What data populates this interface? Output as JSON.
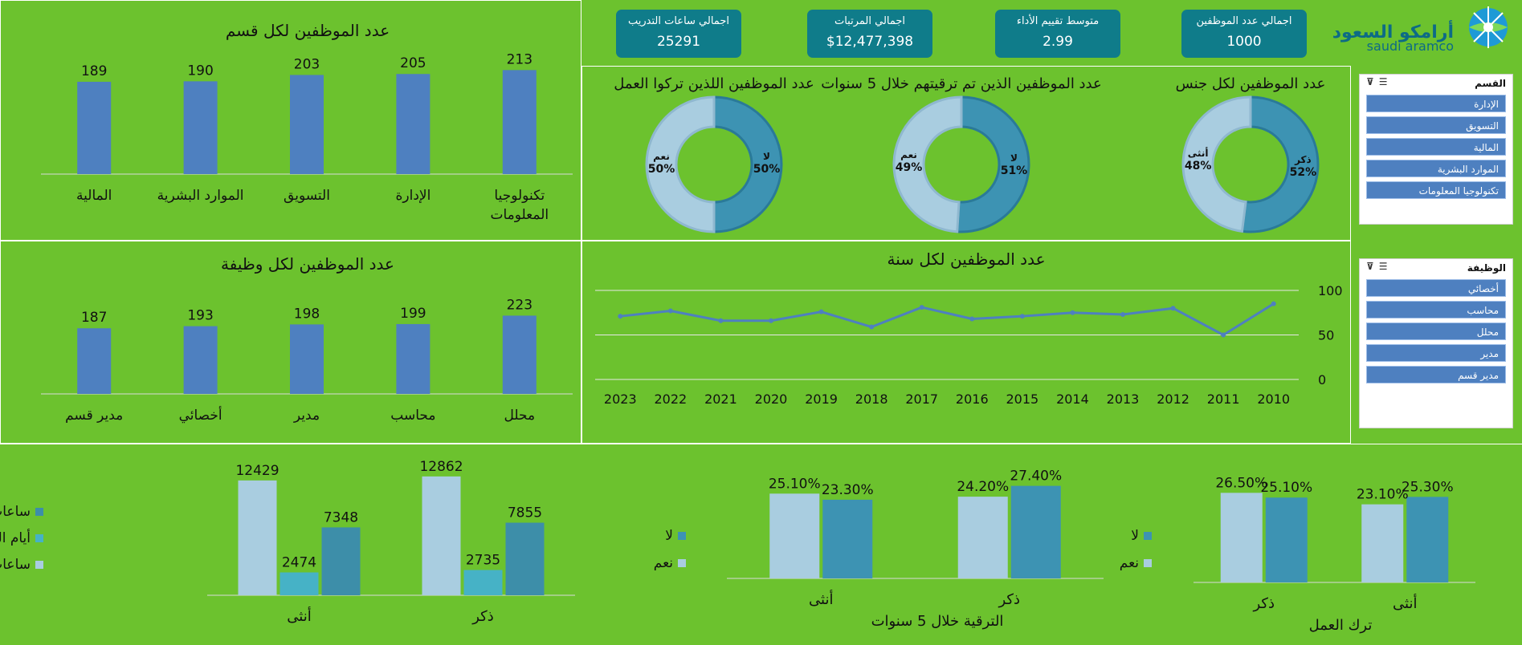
{
  "logo": {
    "arabic": "أرامكو السعودية",
    "latin": "saudi aramco"
  },
  "kpis": [
    {
      "title": "اجمالي ساعات التدريب",
      "value": "25291"
    },
    {
      "title": "اجمالي المرتبات",
      "value": "$12,477,398"
    },
    {
      "title": "متوسط تقييم الأداء",
      "value": "2.99"
    },
    {
      "title": "اجمالي عدد الموظفين",
      "value": "1000"
    }
  ],
  "slicers": {
    "department": {
      "title": "القسم",
      "items": [
        "الإدارة",
        "التسويق",
        "المالية",
        "الموارد البشرية",
        "تكنولوجيا المعلومات"
      ]
    },
    "job": {
      "title": "الوظيفة",
      "items": [
        "أخصائي",
        "محاسب",
        "محلل",
        "مدير",
        "مدير قسم"
      ]
    }
  },
  "colors": {
    "background": "#6cc22e",
    "bar": "#4e80c0",
    "dark_teal": "#3d93b3",
    "light_blue": "#a9cde0",
    "mid_teal": "#46b2c6",
    "kpi": "#0f7c8a"
  },
  "chart_data": [
    {
      "id": "dept",
      "type": "bar",
      "title": "عدد  الموظفين لكل قسم",
      "categories": [
        "تكنولوجيا المعلومات",
        "الإدارة",
        "التسويق",
        "الموارد البشرية",
        "المالية"
      ],
      "category_lines": [
        [
          "تكنولوجيا",
          "المعلومات"
        ],
        [
          "الإدارة"
        ],
        [
          "التسويق"
        ],
        [
          "الموارد البشرية"
        ],
        [
          "المالية"
        ]
      ],
      "values": [
        213,
        205,
        203,
        190,
        189
      ],
      "ylim": [
        0,
        230
      ]
    },
    {
      "id": "job",
      "type": "bar",
      "title": "عدد الموظفين لكل وظيفة",
      "categories": [
        "محلل",
        "محاسب",
        "مدير",
        "أخصائي",
        "مدير قسم"
      ],
      "category_lines": [
        [
          "محلل"
        ],
        [
          "محاسب"
        ],
        [
          "مدير"
        ],
        [
          "أخصائي"
        ],
        [
          "مدير قسم"
        ]
      ],
      "values": [
        223,
        199,
        198,
        193,
        187
      ],
      "ylim": [
        0,
        240
      ]
    },
    {
      "id": "gender",
      "type": "pie",
      "title": "عدد الموظفين لكل جنس",
      "slices": [
        {
          "label": "ذكر",
          "value": 52,
          "pct": "52%"
        },
        {
          "label": "أنثى",
          "value": 48,
          "pct": "48%"
        }
      ]
    },
    {
      "id": "promoted",
      "type": "pie",
      "title": "عدد الموظفين الذين تم ترقيتهم خلال 5 سنوات",
      "slices": [
        {
          "label": "لا",
          "value": 51,
          "pct": "51%"
        },
        {
          "label": "نعم",
          "value": 49,
          "pct": "49%"
        }
      ]
    },
    {
      "id": "left",
      "type": "pie",
      "title": "عدد الموظفين اللذين تركوا العمل",
      "slices": [
        {
          "label": "لا",
          "value": 50,
          "pct": "50%"
        },
        {
          "label": "نعم",
          "value": 50,
          "pct": "50%"
        }
      ]
    },
    {
      "id": "year",
      "type": "line",
      "title": "عدد الموظفين لكل سنة",
      "x": [
        "2010",
        "2011",
        "2012",
        "2013",
        "2014",
        "2015",
        "2016",
        "2017",
        "2018",
        "2019",
        "2020",
        "2021",
        "2022",
        "2023"
      ],
      "values": [
        85,
        50,
        80,
        73,
        75,
        71,
        68,
        81,
        59,
        76,
        66,
        66,
        77,
        71
      ],
      "ylim": [
        0,
        100
      ],
      "yticks": [
        "0",
        "50",
        "100"
      ],
      "grid": true
    },
    {
      "id": "attrition",
      "type": "bar",
      "xlabel": "ترك العمل",
      "categories": [
        "أنثى",
        "ذكر"
      ],
      "series": [
        {
          "name": "لا",
          "values": [
            25.3,
            25.1
          ],
          "labels": [
            "25.30%",
            "25.10%"
          ]
        },
        {
          "name": "نعم",
          "values": [
            23.1,
            26.5
          ],
          "labels": [
            "23.10%",
            "26.50%"
          ]
        }
      ],
      "ylim": [
        0,
        28
      ]
    },
    {
      "id": "promotion",
      "type": "bar",
      "xlabel": "الترقية خلال 5 سنوات",
      "categories": [
        "ذكر",
        "أنثى"
      ],
      "series": [
        {
          "name": "لا",
          "values": [
            27.4,
            23.3
          ],
          "labels": [
            "27.40%",
            "23.30%"
          ]
        },
        {
          "name": "نعم",
          "values": [
            24.2,
            25.1
          ],
          "labels": [
            "24.20%",
            "25.10%"
          ]
        }
      ],
      "ylim": [
        0,
        28.5
      ]
    },
    {
      "id": "hours",
      "type": "bar",
      "categories": [
        "ذكر",
        "أنثى"
      ],
      "series": [
        {
          "name": "ساعات العمل الإضافي",
          "values": [
            7855,
            7348
          ],
          "labels": [
            "7855",
            "7348"
          ]
        },
        {
          "name": "أيام الغياب",
          "values": [
            2735,
            2474
          ],
          "labels": [
            "2735",
            "2474"
          ]
        },
        {
          "name": "ساعات التدريب",
          "values": [
            12862,
            12429
          ],
          "labels": [
            "12862",
            "12429"
          ]
        }
      ],
      "ylim": [
        0,
        13200
      ]
    }
  ]
}
